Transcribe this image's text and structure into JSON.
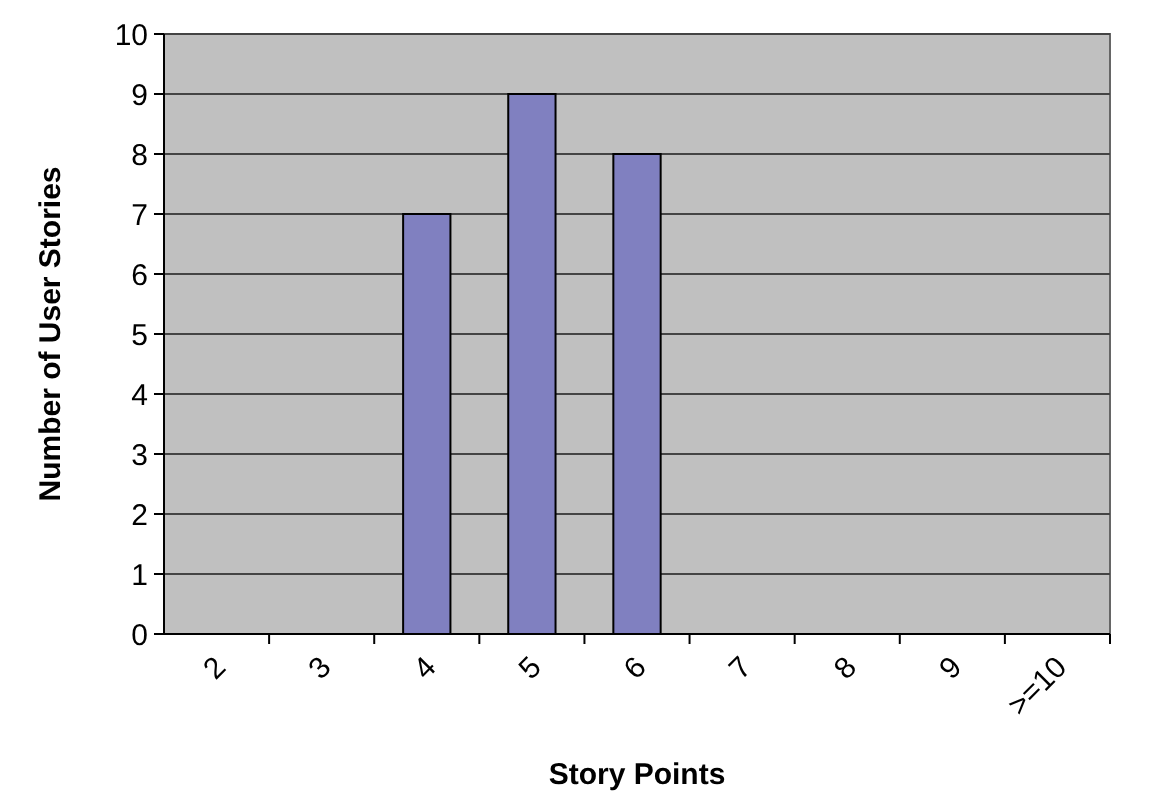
{
  "chart_data": {
    "type": "bar",
    "xlabel": "Story Points",
    "ylabel": "Number of User Stories",
    "categories": [
      "2",
      "3",
      "4",
      "5",
      "6",
      "7",
      "8",
      "9",
      ">=10"
    ],
    "values": [
      0,
      0,
      7,
      9,
      8,
      0,
      0,
      0,
      0
    ],
    "color": "#8080c0",
    "ylim": [
      0,
      10
    ],
    "yticks": [
      0,
      1,
      2,
      3,
      4,
      5,
      6,
      7,
      8,
      9,
      10
    ],
    "grid": "y"
  }
}
